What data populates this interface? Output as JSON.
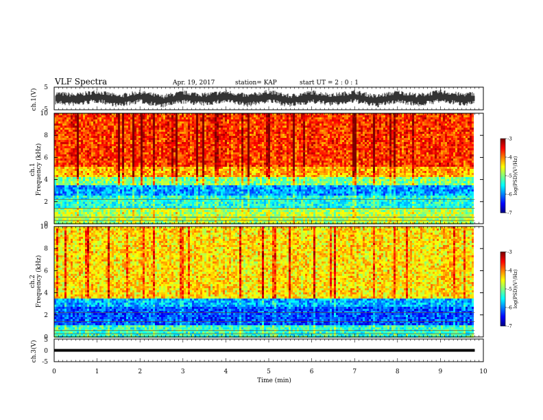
{
  "header": {
    "title": "VLF Spectra",
    "date": "Apr. 19, 2017",
    "station": "station= KAP",
    "start": "start  UT =   2 : 0  : 1"
  },
  "chart_data": [
    {
      "type": "line",
      "name": "ch1-waveform",
      "ylabel": "ch.1(V)",
      "ylim": [
        -5,
        5
      ],
      "yticks": [
        "5",
        "-5"
      ],
      "x": [
        0,
        0.5,
        1,
        1.5,
        2,
        2.5,
        3,
        3.5,
        4,
        4.5,
        5,
        5.5,
        6,
        6.5,
        7,
        7.5,
        8,
        8.5,
        9,
        9.5,
        9.8
      ],
      "y": [
        0.3,
        -0.5,
        1.0,
        -1.0,
        0.8,
        -1.2,
        0.6,
        -0.4,
        0.9,
        -0.8,
        1.0,
        -1.0,
        0.7,
        -0.5,
        0.9,
        -1.1,
        0.8,
        -0.6,
        1.0,
        -0.3,
        0.2
      ]
    },
    {
      "type": "heatmap",
      "name": "ch1-spectrogram",
      "ylabel_line1": "ch.1",
      "ylabel_line2": "Frequency (kHz)",
      "yticks": [
        "0",
        "2",
        "4",
        "6",
        "8",
        "10"
      ],
      "ylim": [
        0,
        10
      ],
      "xlim": [
        0,
        10
      ],
      "data_end_min": 9.8,
      "colorbar": {
        "label": "log(PSD)(V²/Hz)",
        "ticks": [
          "-3",
          "-4",
          "-5",
          "-6",
          "-7"
        ],
        "range": [
          -7,
          -3
        ]
      },
      "bands": [
        {
          "from": 0,
          "to": 1.5,
          "value": -4.8
        },
        {
          "from": 1.5,
          "to": 2.6,
          "value": -5.4
        },
        {
          "from": 2.6,
          "to": 3.5,
          "value": -5.9
        },
        {
          "from": 3.5,
          "to": 4.2,
          "value": -5.0
        },
        {
          "from": 4.2,
          "to": 5.2,
          "value": -4.2
        },
        {
          "from": 5.2,
          "to": 10,
          "value": -3.7
        }
      ]
    },
    {
      "type": "heatmap",
      "name": "ch2-spectrogram",
      "ylabel_line1": "ch.2",
      "ylabel_line2": "Frequency (kHz)",
      "yticks": [
        "0",
        "2",
        "4",
        "6",
        "8",
        "10"
      ],
      "ylim": [
        0,
        10
      ],
      "xlim": [
        0,
        10
      ],
      "data_end_min": 9.8,
      "colorbar": {
        "label": "log(PSD)(V²/Hz)",
        "ticks": [
          "-3",
          "-4",
          "-5",
          "-6",
          "-7"
        ],
        "range": [
          -7,
          -3
        ]
      },
      "bands": [
        {
          "from": 0,
          "to": 1.0,
          "value": -5.3
        },
        {
          "from": 1.0,
          "to": 2.8,
          "value": -6.2
        },
        {
          "from": 2.8,
          "to": 3.5,
          "value": -5.8
        },
        {
          "from": 3.5,
          "to": 10,
          "value": -4.4
        }
      ]
    },
    {
      "type": "line",
      "name": "ch3-waveform",
      "ylabel": "ch.3(V)",
      "ylim": [
        -5,
        5
      ],
      "yticks": [
        "5",
        "0",
        "-5"
      ],
      "x": [
        0,
        9.8
      ],
      "y": [
        0,
        0
      ]
    }
  ],
  "xaxis": {
    "label": "Time (min)",
    "ticks": [
      "0",
      "1",
      "2",
      "3",
      "4",
      "5",
      "6",
      "7",
      "8",
      "9",
      "10"
    ],
    "range": [
      0,
      10
    ]
  }
}
